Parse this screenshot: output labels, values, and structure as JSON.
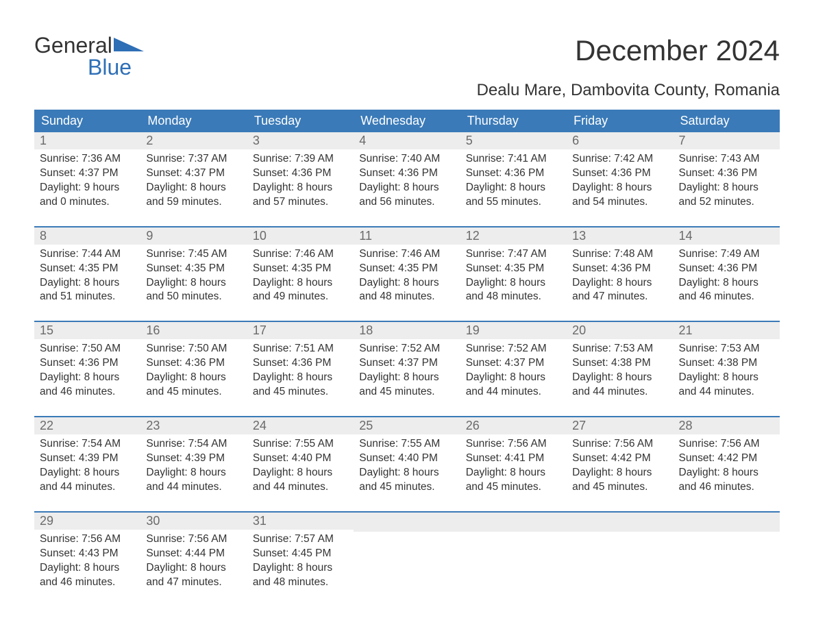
{
  "brand": {
    "name1": "General",
    "name2": "Blue"
  },
  "title": "December 2024",
  "location": "Dealu Mare, Dambovita County, Romania",
  "colors": {
    "header_bg": "#3a7ab8",
    "header_text": "#ffffff",
    "daynum_bg": "#ededed",
    "daynum_text": "#6a6a6a",
    "body_text": "#333333",
    "brand_blue": "#2e6fb6",
    "week_border": "#3a7ab8",
    "background": "#ffffff"
  },
  "typography": {
    "title_fontsize": 42,
    "location_fontsize": 24,
    "dayhead_fontsize": 18,
    "daynum_fontsize": 18,
    "body_fontsize": 15.5,
    "font_family": "Arial"
  },
  "layout": {
    "columns": 7,
    "weeks": 5
  },
  "day_headers": [
    "Sunday",
    "Monday",
    "Tuesday",
    "Wednesday",
    "Thursday",
    "Friday",
    "Saturday"
  ],
  "labels": {
    "sunrise": "Sunrise:",
    "sunset": "Sunset:",
    "daylight": "Daylight:"
  },
  "days": [
    {
      "n": "1",
      "sunrise": "7:36 AM",
      "sunset": "4:37 PM",
      "dl1": "9 hours",
      "dl2": "and 0 minutes."
    },
    {
      "n": "2",
      "sunrise": "7:37 AM",
      "sunset": "4:37 PM",
      "dl1": "8 hours",
      "dl2": "and 59 minutes."
    },
    {
      "n": "3",
      "sunrise": "7:39 AM",
      "sunset": "4:36 PM",
      "dl1": "8 hours",
      "dl2": "and 57 minutes."
    },
    {
      "n": "4",
      "sunrise": "7:40 AM",
      "sunset": "4:36 PM",
      "dl1": "8 hours",
      "dl2": "and 56 minutes."
    },
    {
      "n": "5",
      "sunrise": "7:41 AM",
      "sunset": "4:36 PM",
      "dl1": "8 hours",
      "dl2": "and 55 minutes."
    },
    {
      "n": "6",
      "sunrise": "7:42 AM",
      "sunset": "4:36 PM",
      "dl1": "8 hours",
      "dl2": "and 54 minutes."
    },
    {
      "n": "7",
      "sunrise": "7:43 AM",
      "sunset": "4:36 PM",
      "dl1": "8 hours",
      "dl2": "and 52 minutes."
    },
    {
      "n": "8",
      "sunrise": "7:44 AM",
      "sunset": "4:35 PM",
      "dl1": "8 hours",
      "dl2": "and 51 minutes."
    },
    {
      "n": "9",
      "sunrise": "7:45 AM",
      "sunset": "4:35 PM",
      "dl1": "8 hours",
      "dl2": "and 50 minutes."
    },
    {
      "n": "10",
      "sunrise": "7:46 AM",
      "sunset": "4:35 PM",
      "dl1": "8 hours",
      "dl2": "and 49 minutes."
    },
    {
      "n": "11",
      "sunrise": "7:46 AM",
      "sunset": "4:35 PM",
      "dl1": "8 hours",
      "dl2": "and 48 minutes."
    },
    {
      "n": "12",
      "sunrise": "7:47 AM",
      "sunset": "4:35 PM",
      "dl1": "8 hours",
      "dl2": "and 48 minutes."
    },
    {
      "n": "13",
      "sunrise": "7:48 AM",
      "sunset": "4:36 PM",
      "dl1": "8 hours",
      "dl2": "and 47 minutes."
    },
    {
      "n": "14",
      "sunrise": "7:49 AM",
      "sunset": "4:36 PM",
      "dl1": "8 hours",
      "dl2": "and 46 minutes."
    },
    {
      "n": "15",
      "sunrise": "7:50 AM",
      "sunset": "4:36 PM",
      "dl1": "8 hours",
      "dl2": "and 46 minutes."
    },
    {
      "n": "16",
      "sunrise": "7:50 AM",
      "sunset": "4:36 PM",
      "dl1": "8 hours",
      "dl2": "and 45 minutes."
    },
    {
      "n": "17",
      "sunrise": "7:51 AM",
      "sunset": "4:36 PM",
      "dl1": "8 hours",
      "dl2": "and 45 minutes."
    },
    {
      "n": "18",
      "sunrise": "7:52 AM",
      "sunset": "4:37 PM",
      "dl1": "8 hours",
      "dl2": "and 45 minutes."
    },
    {
      "n": "19",
      "sunrise": "7:52 AM",
      "sunset": "4:37 PM",
      "dl1": "8 hours",
      "dl2": "and 44 minutes."
    },
    {
      "n": "20",
      "sunrise": "7:53 AM",
      "sunset": "4:38 PM",
      "dl1": "8 hours",
      "dl2": "and 44 minutes."
    },
    {
      "n": "21",
      "sunrise": "7:53 AM",
      "sunset": "4:38 PM",
      "dl1": "8 hours",
      "dl2": "and 44 minutes."
    },
    {
      "n": "22",
      "sunrise": "7:54 AM",
      "sunset": "4:39 PM",
      "dl1": "8 hours",
      "dl2": "and 44 minutes."
    },
    {
      "n": "23",
      "sunrise": "7:54 AM",
      "sunset": "4:39 PM",
      "dl1": "8 hours",
      "dl2": "and 44 minutes."
    },
    {
      "n": "24",
      "sunrise": "7:55 AM",
      "sunset": "4:40 PM",
      "dl1": "8 hours",
      "dl2": "and 44 minutes."
    },
    {
      "n": "25",
      "sunrise": "7:55 AM",
      "sunset": "4:40 PM",
      "dl1": "8 hours",
      "dl2": "and 45 minutes."
    },
    {
      "n": "26",
      "sunrise": "7:56 AM",
      "sunset": "4:41 PM",
      "dl1": "8 hours",
      "dl2": "and 45 minutes."
    },
    {
      "n": "27",
      "sunrise": "7:56 AM",
      "sunset": "4:42 PM",
      "dl1": "8 hours",
      "dl2": "and 45 minutes."
    },
    {
      "n": "28",
      "sunrise": "7:56 AM",
      "sunset": "4:42 PM",
      "dl1": "8 hours",
      "dl2": "and 46 minutes."
    },
    {
      "n": "29",
      "sunrise": "7:56 AM",
      "sunset": "4:43 PM",
      "dl1": "8 hours",
      "dl2": "and 46 minutes."
    },
    {
      "n": "30",
      "sunrise": "7:56 AM",
      "sunset": "4:44 PM",
      "dl1": "8 hours",
      "dl2": "and 47 minutes."
    },
    {
      "n": "31",
      "sunrise": "7:57 AM",
      "sunset": "4:45 PM",
      "dl1": "8 hours",
      "dl2": "and 48 minutes."
    }
  ]
}
